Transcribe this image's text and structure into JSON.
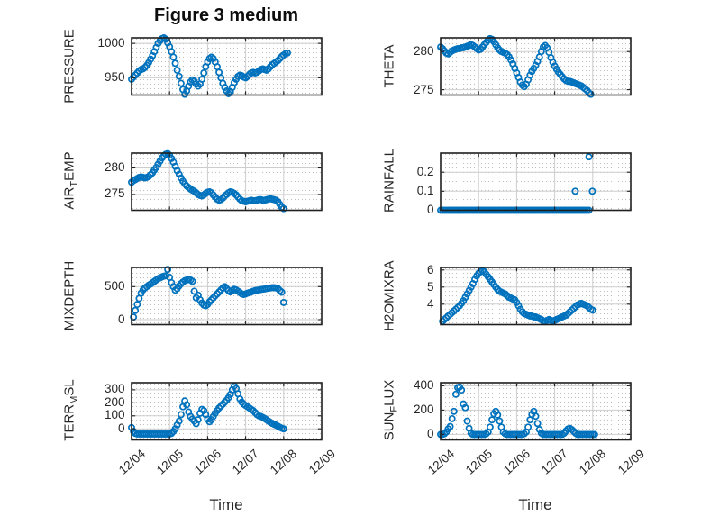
{
  "title": "Figure 3 medium",
  "xlabel": "Time",
  "x_tick_labels": [
    "12/04",
    "12/05",
    "12/06",
    "12/07",
    "12/08",
    "12/09"
  ],
  "colors": {
    "marker": "#0072BD",
    "grid_major": "#cdcdcd",
    "grid_minor_dot": "#bfbfbf",
    "axis_box": "#1f1f1f",
    "tick_text": "#262626"
  },
  "chart_data": [
    {
      "type": "scatter",
      "id": "pressure",
      "row": 0,
      "col": 0,
      "ylabel": "PRESSURE",
      "ylabel_parts": [
        [
          "PRESSURE",
          false
        ]
      ],
      "yticks": [
        950,
        1000
      ],
      "ylim": [
        925,
        1008
      ],
      "xlim": [
        0,
        5
      ],
      "grid": "major+minor",
      "series": {
        "x0": 0,
        "dx": 0.05,
        "y": [
          948,
          951,
          954,
          957,
          960,
          962,
          963,
          965,
          968,
          972,
          977,
          982,
          988,
          994,
          1000,
          1004,
          1007,
          1008,
          1006,
          1001,
          995,
          988,
          980,
          971,
          961,
          952,
          942,
          933,
          926,
          931,
          938,
          944,
          947,
          945,
          941,
          938,
          941,
          948,
          957,
          966,
          973,
          978,
          980,
          978,
          973,
          966,
          958,
          950,
          942,
          936,
          931,
          927,
          930,
          936,
          943,
          948,
          952,
          954,
          953,
          951,
          950,
          952,
          955,
          957,
          958,
          957,
          958,
          960,
          962,
          963,
          962,
          961,
          963,
          966,
          969,
          971,
          973,
          975,
          978,
          981,
          983,
          985,
          986
        ]
      }
    },
    {
      "type": "scatter",
      "id": "theta",
      "row": 0,
      "col": 1,
      "ylabel": "THETA",
      "ylabel_parts": [
        [
          "THETA",
          false
        ]
      ],
      "yticks": [
        275,
        280
      ],
      "ylim": [
        274.3,
        281.8
      ],
      "xlim": [
        0,
        5
      ],
      "grid": "major+minor",
      "series": {
        "x0": 0,
        "dx": 0.05,
        "y": [
          280.6,
          280.4,
          280.1,
          279.8,
          279.7,
          279.9,
          280.1,
          280.2,
          280.3,
          280.4,
          280.4,
          280.5,
          280.5,
          280.6,
          280.7,
          280.8,
          280.9,
          280.8,
          280.6,
          280.4,
          280.2,
          280.3,
          280.6,
          280.9,
          281.2,
          281.5,
          281.7,
          281.6,
          281.3,
          280.9,
          280.5,
          280.2,
          280.0,
          279.9,
          279.8,
          279.6,
          279.3,
          278.9,
          278.4,
          277.8,
          277.2,
          276.6,
          276.0,
          275.6,
          275.4,
          275.7,
          276.3,
          276.9,
          277.4,
          277.8,
          278.2,
          278.7,
          279.3,
          280.0,
          280.6,
          280.8,
          280.5,
          279.9,
          279.2,
          278.6,
          278.1,
          277.7,
          277.3,
          277.0,
          276.7,
          276.4,
          276.2,
          276.1,
          276.1,
          276.0,
          275.9,
          275.8,
          275.7,
          275.6,
          275.5,
          275.3,
          275.1,
          274.9,
          274.6,
          274.4
        ]
      }
    },
    {
      "type": "scatter",
      "id": "air-temp",
      "row": 1,
      "col": 0,
      "ylabel": "AIR_TEMP",
      "ylabel_parts": [
        [
          "AIR",
          false
        ],
        [
          "T",
          true
        ],
        [
          "EMP",
          false
        ]
      ],
      "yticks": [
        275,
        280
      ],
      "ylim": [
        272,
        282.8
      ],
      "xlim": [
        0,
        5
      ],
      "grid": "major+minor",
      "series": {
        "x0": 0,
        "dx": 0.05,
        "y": [
          277.3,
          277.6,
          277.8,
          278.0,
          278.2,
          278.3,
          278.2,
          278.1,
          278.2,
          278.4,
          278.7,
          279.1,
          279.6,
          280.1,
          280.7,
          281.3,
          281.9,
          282.3,
          282.6,
          282.7,
          282.4,
          281.8,
          281.1,
          280.3,
          279.5,
          278.8,
          278.1,
          277.5,
          277.0,
          276.6,
          276.3,
          276.0,
          275.8,
          275.6,
          275.3,
          275.0,
          274.8,
          274.7,
          274.9,
          275.2,
          275.4,
          275.5,
          275.3,
          274.9,
          274.5,
          274.1,
          273.9,
          274.0,
          274.3,
          274.7,
          275.0,
          275.3,
          275.5,
          275.4,
          275.2,
          274.9,
          274.5,
          274.1,
          273.8,
          273.7,
          273.6,
          273.7,
          273.8,
          273.9,
          273.8,
          273.8,
          273.9,
          274.0,
          274.0,
          273.9,
          273.9,
          274.0,
          274.1,
          274.2,
          274.1,
          274.0,
          273.9,
          273.6,
          273.1,
          272.6,
          272.3
        ]
      }
    },
    {
      "type": "scatter",
      "id": "rainfall",
      "row": 1,
      "col": 1,
      "ylabel": "RAINFALL",
      "ylabel_parts": [
        [
          "RAINFALL",
          false
        ]
      ],
      "yticks": [
        0,
        0.1,
        0.2
      ],
      "ylim": [
        0,
        0.3
      ],
      "xlim": [
        0,
        5
      ],
      "grid": "major+minor",
      "series": {
        "x0": 0,
        "dx": 0.05,
        "y": [
          0,
          0,
          0,
          0,
          0,
          0,
          0,
          0,
          0,
          0,
          0,
          0,
          0,
          0,
          0,
          0,
          0,
          0,
          0,
          0,
          0,
          0,
          0,
          0,
          0,
          0,
          0,
          0,
          0,
          0,
          0,
          0,
          0,
          0,
          0,
          0,
          0,
          0,
          0,
          0,
          0,
          0,
          0,
          0,
          0,
          0,
          0,
          0,
          0,
          0,
          0,
          0,
          0,
          0,
          0,
          0,
          0,
          0,
          0,
          0,
          0,
          0,
          0,
          0,
          0,
          0,
          0,
          0,
          0,
          0,
          0,
          0,
          0,
          0,
          0,
          0,
          0,
          0,
          0
        ]
      },
      "extra_points": [
        [
          3.54,
          0.1
        ],
        [
          3.9,
          0.28
        ],
        [
          3.99,
          0.1
        ]
      ]
    },
    {
      "type": "scatter",
      "id": "mixdepth",
      "row": 2,
      "col": 0,
      "ylabel": "MIXDEPTH",
      "ylabel_parts": [
        [
          "MIXDEPTH",
          false
        ]
      ],
      "yticks": [
        0,
        500
      ],
      "ylim": [
        -75,
        790
      ],
      "xlim": [
        0,
        5
      ],
      "grid": "major+minor",
      "series": {
        "x0": 0.05,
        "dx": 0.05,
        "y": [
          40,
          140,
          230,
          320,
          400,
          450,
          480,
          500,
          520,
          540,
          560,
          580,
          600,
          620,
          635,
          648,
          658,
          665,
          760,
          640,
          560,
          500,
          445,
          470,
          510,
          545,
          570,
          590,
          600,
          610,
          600,
          580,
          430,
          330,
          370,
          300,
          250,
          220,
          210,
          230,
          270,
          300,
          330,
          360,
          390,
          420,
          450,
          480,
          500,
          470,
          440,
          420,
          440,
          460,
          450,
          430,
          410,
          390,
          380,
          390,
          400,
          410,
          420,
          430,
          440,
          445,
          450,
          455,
          460,
          465,
          470,
          475,
          480,
          485,
          485,
          480,
          470,
          440,
          415,
          260
        ]
      }
    },
    {
      "type": "scatter",
      "id": "h2omixra",
      "row": 2,
      "col": 1,
      "ylabel": "H2OMIXRA",
      "ylabel_parts": [
        [
          "H2OMIXRA",
          false
        ]
      ],
      "yticks": [
        4,
        5,
        6
      ],
      "ylim": [
        2.8,
        6.15
      ],
      "xlim": [
        0,
        5
      ],
      "grid": "major+minor",
      "series": {
        "x0": 0.05,
        "dx": 0.05,
        "y": [
          3.0,
          3.1,
          3.2,
          3.3,
          3.4,
          3.5,
          3.6,
          3.7,
          3.8,
          3.9,
          4.05,
          4.2,
          4.4,
          4.6,
          4.8,
          5.0,
          5.2,
          5.45,
          5.65,
          5.8,
          5.9,
          5.95,
          5.9,
          5.75,
          5.6,
          5.45,
          5.3,
          5.15,
          5.0,
          4.85,
          4.75,
          4.7,
          4.65,
          4.6,
          4.5,
          4.4,
          4.35,
          4.3,
          4.25,
          4.1,
          3.9,
          3.7,
          3.55,
          3.45,
          3.4,
          3.35,
          3.3,
          3.3,
          3.25,
          3.25,
          3.2,
          3.15,
          3.1,
          3.0,
          3.0,
          3.05,
          3.1,
          3.05,
          3.0,
          3.05,
          3.1,
          3.15,
          3.2,
          3.25,
          3.3,
          3.35,
          3.45,
          3.55,
          3.65,
          3.75,
          3.85,
          3.95,
          4.0,
          4.05,
          4.0,
          3.95,
          3.9,
          3.8,
          3.7,
          3.65
        ]
      }
    },
    {
      "type": "scatter",
      "id": "terr-msl",
      "row": 3,
      "col": 0,
      "ylabel": "TERR_MSL",
      "ylabel_parts": [
        [
          "TERR",
          false
        ],
        [
          "M",
          true
        ],
        [
          "SL",
          false
        ]
      ],
      "yticks": [
        0,
        100,
        200,
        300
      ],
      "ylim": [
        -85,
        355
      ],
      "xlim": [
        0,
        5
      ],
      "grid": "major+minor",
      "series": {
        "x0": 0,
        "dx": 0.05,
        "y": [
          10,
          -20,
          -35,
          -40,
          -40,
          -40,
          -40,
          -40,
          -40,
          -40,
          -40,
          -40,
          -40,
          -40,
          -40,
          -40,
          -40,
          -40,
          -40,
          -40,
          -40,
          -35,
          -20,
          0,
          30,
          60,
          110,
          170,
          215,
          185,
          130,
          95,
          75,
          60,
          40,
          70,
          120,
          150,
          140,
          110,
          75,
          55,
          70,
          95,
          120,
          140,
          160,
          175,
          190,
          205,
          220,
          240,
          265,
          300,
          330,
          310,
          270,
          230,
          205,
          190,
          180,
          170,
          160,
          150,
          140,
          125,
          110,
          100,
          95,
          88,
          80,
          70,
          60,
          50,
          42,
          35,
          28,
          20,
          12,
          5,
          0
        ]
      }
    },
    {
      "type": "scatter",
      "id": "sun-flux",
      "row": 3,
      "col": 1,
      "ylabel": "SUN_FLUX",
      "ylabel_parts": [
        [
          "SUN",
          false
        ],
        [
          "F",
          true
        ],
        [
          "LUX",
          false
        ]
      ],
      "yticks": [
        0,
        200,
        400
      ],
      "ylim": [
        -45,
        425
      ],
      "xlim": [
        0,
        5
      ],
      "grid": "major+minor",
      "series": {
        "x0": 0,
        "dx": 0.05,
        "y": [
          0,
          0,
          5,
          20,
          45,
          65,
          130,
          190,
          330,
          385,
          390,
          365,
          250,
          220,
          110,
          50,
          10,
          0,
          0,
          0,
          0,
          0,
          0,
          0,
          5,
          20,
          60,
          120,
          170,
          190,
          160,
          110,
          60,
          20,
          5,
          0,
          0,
          0,
          0,
          0,
          0,
          0,
          0,
          0,
          5,
          20,
          60,
          120,
          165,
          190,
          150,
          90,
          40,
          10,
          0,
          0,
          0,
          0,
          0,
          0,
          0,
          0,
          0,
          0,
          0,
          10,
          30,
          45,
          50,
          40,
          25,
          10,
          0,
          0,
          0,
          0,
          0,
          0,
          0,
          0,
          0,
          0
        ]
      }
    }
  ]
}
